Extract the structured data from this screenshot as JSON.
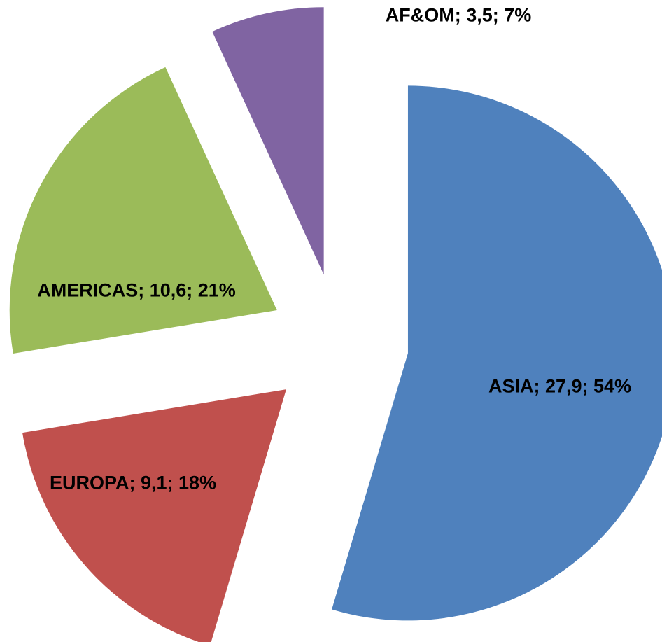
{
  "chart_data": {
    "type": "pie",
    "values": [
      27.9,
      9.1,
      10.6,
      3.5
    ],
    "value_labels": [
      "ASIA; 27,9; 54%",
      "EUROPA; 9,1; 18%",
      "AMERICAS; 10,6; 21%",
      "AF&OM; 3,5; 7%"
    ],
    "colors": [
      "#4f81bd",
      "#c0504d",
      "#9bbb59",
      "#8064a2"
    ],
    "exploded": true
  }
}
